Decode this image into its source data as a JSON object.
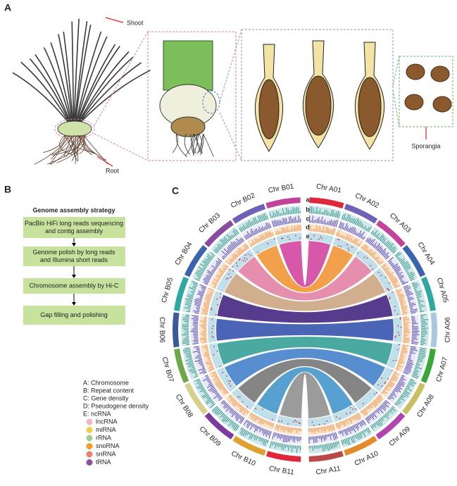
{
  "panels": {
    "a": "A",
    "b": "B",
    "c": "C"
  },
  "panel_a": {
    "shoot": "Shoot",
    "root": "Root",
    "sporangia": "Sporangia"
  },
  "panel_b": {
    "title": "Genome assembly strategy",
    "steps": [
      [
        "PacBio HiFi long reads sequencing",
        "and contig assembly"
      ],
      [
        "Genome polish by long reads",
        "and Illumina short reads"
      ],
      [
        "Chromosome assembly by Hi-C"
      ],
      [
        "Gap filling and polishing"
      ]
    ]
  },
  "legend": {
    "tracks": [
      "A: Chromosome",
      "B: Repeat content",
      "C: Gene density",
      "D: Pseudogene density",
      "E: ncRNA"
    ],
    "ncrna": [
      "lncRNA",
      "miRNA",
      "rRNA",
      "snoRNA",
      "snRNA",
      "tRNA"
    ]
  },
  "circos": {
    "track_labels": [
      "a",
      "b",
      "c",
      "d",
      "e"
    ],
    "chromosomes_a": [
      "Chr A01",
      "Chr A02",
      "Chr A03",
      "Chr A04",
      "Chr A05",
      "Chr A06",
      "Chr A07",
      "Chr A08",
      "Chr A09",
      "Chr A10",
      "Chr A11"
    ],
    "chromosomes_b": [
      "Chr B01",
      "Chr B02",
      "Chr B03",
      "Chr B04",
      "Chr B05",
      "Chr B06",
      "Chr B07",
      "Chr B08",
      "Chr B09",
      "Chr B10",
      "Chr B11"
    ]
  }
}
